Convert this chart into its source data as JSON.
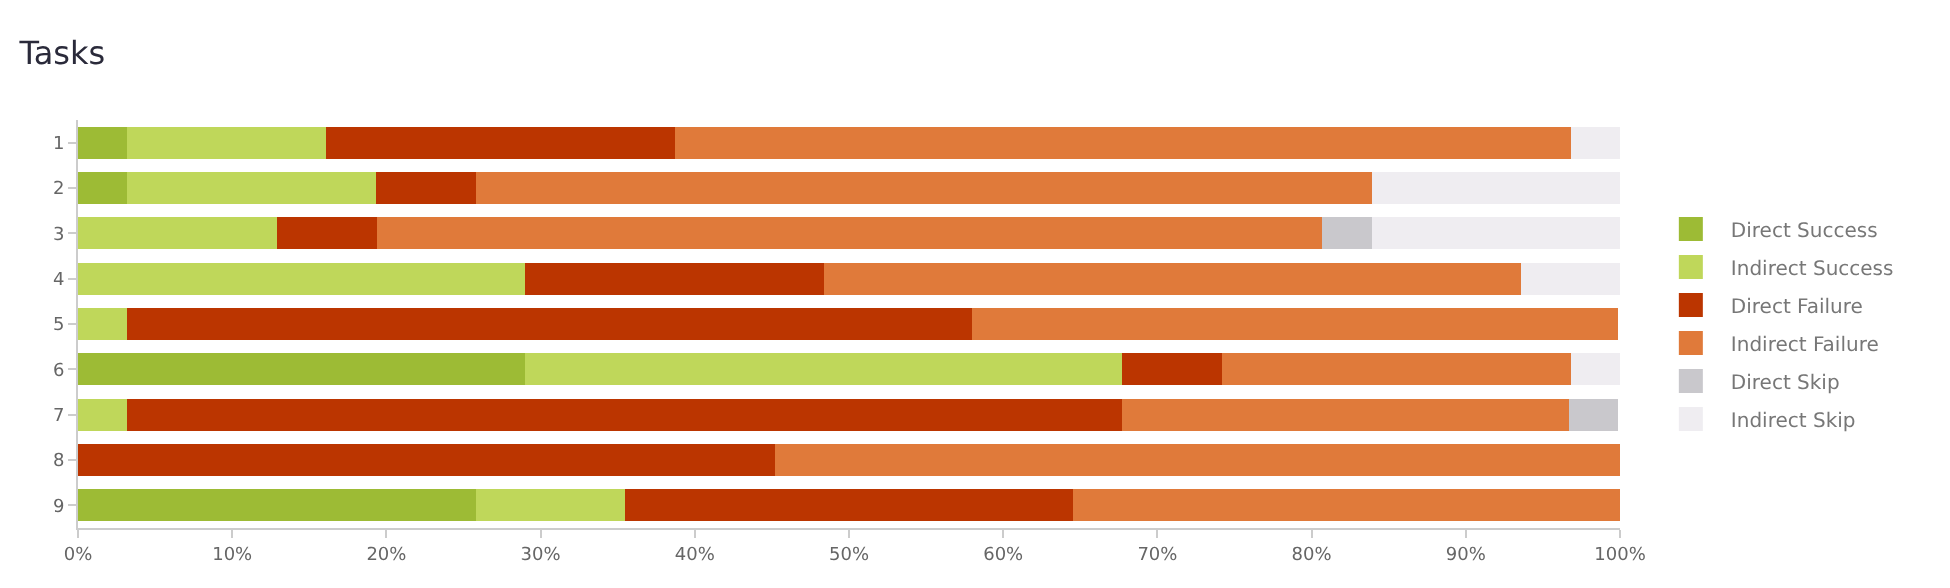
{
  "chart_data": {
    "type": "bar",
    "title": "Tasks",
    "orientation": "horizontal",
    "stacked": true,
    "categories": [
      "1",
      "2",
      "3",
      "4",
      "5",
      "6",
      "7",
      "8",
      "9"
    ],
    "series": [
      {
        "name": "Direct Success",
        "color": "#9dbb35",
        "values": [
          3.2,
          3.2,
          0,
          0,
          0,
          29.0,
          0,
          0,
          25.8
        ]
      },
      {
        "name": "Indirect Success",
        "color": "#bfd75a",
        "values": [
          12.9,
          16.1,
          12.9,
          29.0,
          3.2,
          38.7,
          3.2,
          0,
          9.7
        ]
      },
      {
        "name": "Direct Failure",
        "color": "#bb3500",
        "values": [
          22.6,
          6.5,
          6.5,
          19.4,
          54.8,
          6.5,
          64.5,
          45.2,
          29.0
        ]
      },
      {
        "name": "Indirect Failure",
        "color": "#e07a3a",
        "values": [
          58.1,
          58.1,
          61.3,
          45.2,
          41.9,
          22.6,
          29.0,
          54.8,
          35.5
        ]
      },
      {
        "name": "Direct Skip",
        "color": "#c9c8cc",
        "values": [
          0,
          0,
          3.2,
          0,
          0,
          0,
          3.2,
          0,
          0
        ]
      },
      {
        "name": "Indirect Skip",
        "color": "#efedf1",
        "values": [
          3.2,
          16.1,
          16.1,
          6.5,
          0,
          3.2,
          0,
          0,
          0
        ]
      }
    ],
    "xlim": [
      0,
      100
    ],
    "xticks": [
      {
        "value": 0,
        "label": "0%"
      },
      {
        "value": 10,
        "label": "10%"
      },
      {
        "value": 20,
        "label": "20%"
      },
      {
        "value": 30,
        "label": "30%"
      },
      {
        "value": 40,
        "label": "40%"
      },
      {
        "value": 50,
        "label": "50%"
      },
      {
        "value": 60,
        "label": "60%"
      },
      {
        "value": 70,
        "label": "70%"
      },
      {
        "value": 80,
        "label": "80%"
      },
      {
        "value": 90,
        "label": "90%"
      },
      {
        "value": 100,
        "label": "100%"
      }
    ],
    "grid": false,
    "legend": "right"
  }
}
